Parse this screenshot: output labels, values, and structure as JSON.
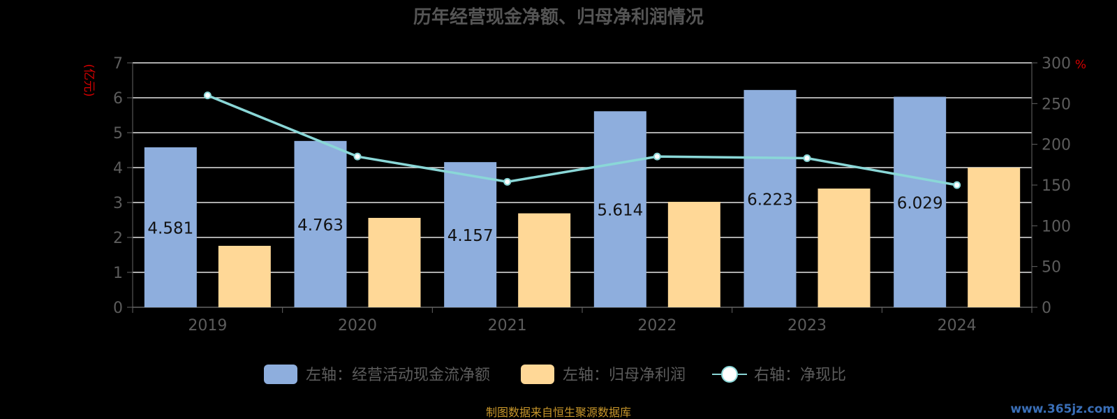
{
  "chart_data": {
    "type": "bar",
    "title": "历年经营现金净额、归母净利润情况",
    "categories": [
      "2019",
      "2020",
      "2021",
      "2022",
      "2023",
      "2024"
    ],
    "series": [
      {
        "name": "左轴：经营活动现金流净额",
        "type": "bar",
        "axis": "left",
        "color": "#8eaedd",
        "values": [
          4.581,
          4.763,
          4.157,
          5.614,
          6.223,
          6.029
        ],
        "labels": [
          "4.581",
          "4.763",
          "4.157",
          "5.614",
          "6.223",
          "6.029"
        ]
      },
      {
        "name": "左轴：归母净利润",
        "type": "bar",
        "axis": "left",
        "color": "#ffd897",
        "values": [
          1.76,
          2.56,
          2.69,
          3.02,
          3.4,
          4.0
        ]
      },
      {
        "name": "右轴：净现比",
        "type": "line",
        "axis": "right",
        "color": "#8ad7d7",
        "values": [
          260,
          185,
          154,
          185,
          183,
          150
        ]
      }
    ],
    "left_axis": {
      "unit": "(亿元)",
      "min": 0,
      "max": 7,
      "ticks": [
        "0",
        "1",
        "2",
        "3",
        "4",
        "5",
        "6",
        "7"
      ]
    },
    "right_axis": {
      "unit": "%",
      "min": 0,
      "max": 300,
      "ticks": [
        "0",
        "50",
        "100",
        "150",
        "200",
        "250",
        "300"
      ]
    },
    "grid": true,
    "legend_position": "bottom"
  },
  "footer": {
    "source": "制图数据来自恒生聚源数据库",
    "watermark": "www.365jz.com"
  }
}
